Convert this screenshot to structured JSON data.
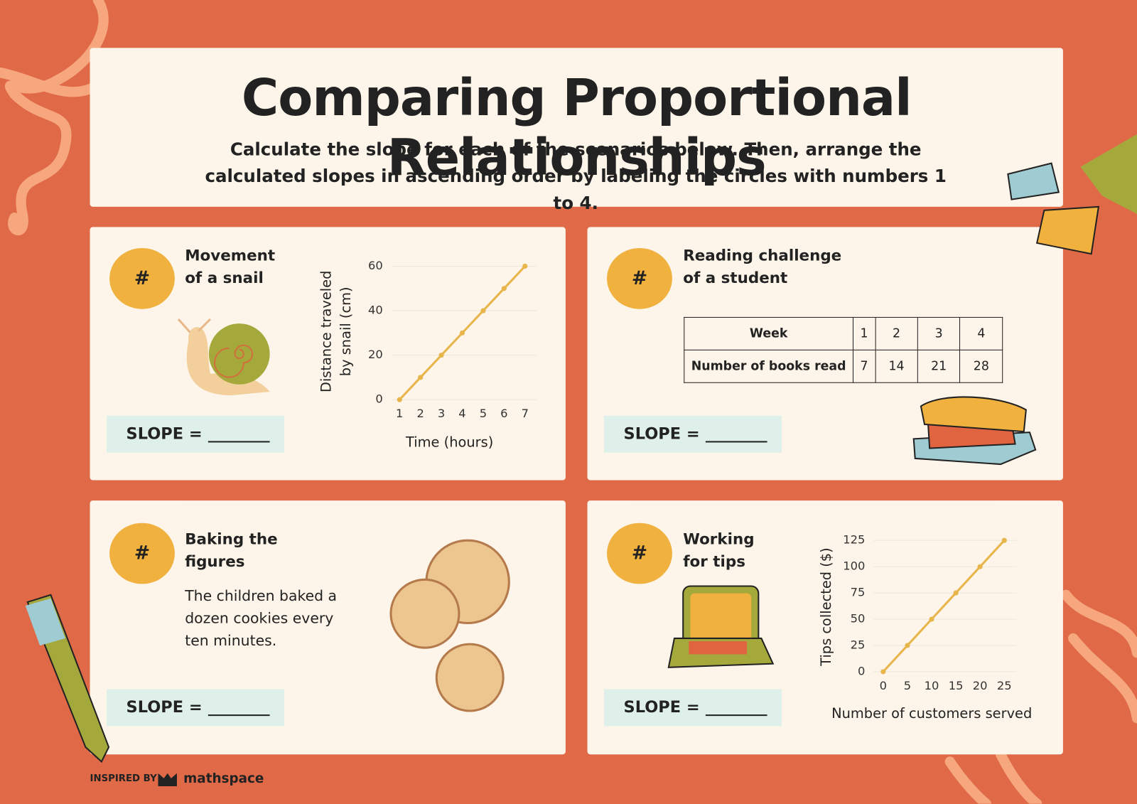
{
  "header": {
    "title": "Comparing Proportional Relationships",
    "instructions": "Calculate the slope for each of the scenarios below. Then, arrange the calculated slopes in ascending order by labeling the circles with numbers 1 to 4."
  },
  "panels": [
    {
      "badge": "#",
      "title": "Movement of a snail",
      "slope_label": "SLOPE ="
    },
    {
      "badge": "#",
      "title": "Reading challenge of a student",
      "slope_label": "SLOPE =",
      "table": {
        "header": [
          "Week",
          1,
          2,
          3,
          4
        ],
        "rows": [
          [
            "Number of books read",
            7,
            14,
            21,
            28
          ]
        ]
      }
    },
    {
      "badge": "#",
      "title": "Baking the figures",
      "text": "The children baked a dozen cookies every ten minutes.",
      "slope_label": "SLOPE ="
    },
    {
      "badge": "#",
      "title": "Working for tips",
      "slope_label": "SLOPE ="
    }
  ],
  "chart_data": [
    {
      "type": "line",
      "x": [
        1,
        2,
        3,
        4,
        5,
        6,
        7
      ],
      "values": [
        0,
        10,
        20,
        30,
        40,
        50,
        60
      ],
      "color": "#e8b54a",
      "xlim": [
        1,
        7
      ],
      "xticks": [
        1,
        2,
        3,
        4,
        5,
        6,
        7
      ],
      "ylim": [
        0,
        60
      ],
      "yticks": [
        0,
        20,
        40,
        60
      ],
      "grid": true,
      "xlabel": "Time (hours)",
      "ylabel": "Distance traveled by snail (cm)"
    },
    {
      "type": "line",
      "x": [
        0,
        5,
        10,
        15,
        20,
        25
      ],
      "values": [
        0,
        25,
        50,
        75,
        100,
        125
      ],
      "color": "#e8b54a",
      "xlim": [
        0,
        25
      ],
      "xticks": [
        0,
        5,
        10,
        15,
        20,
        25
      ],
      "ylim": [
        0,
        125
      ],
      "yticks": [
        0,
        25,
        50,
        75,
        100,
        125
      ],
      "grid": true,
      "xlabel": "Number of customers served",
      "ylabel": "Tips collected ($)"
    }
  ],
  "footer": {
    "inspired": "INSPIRED BY",
    "brand": "mathspace"
  }
}
